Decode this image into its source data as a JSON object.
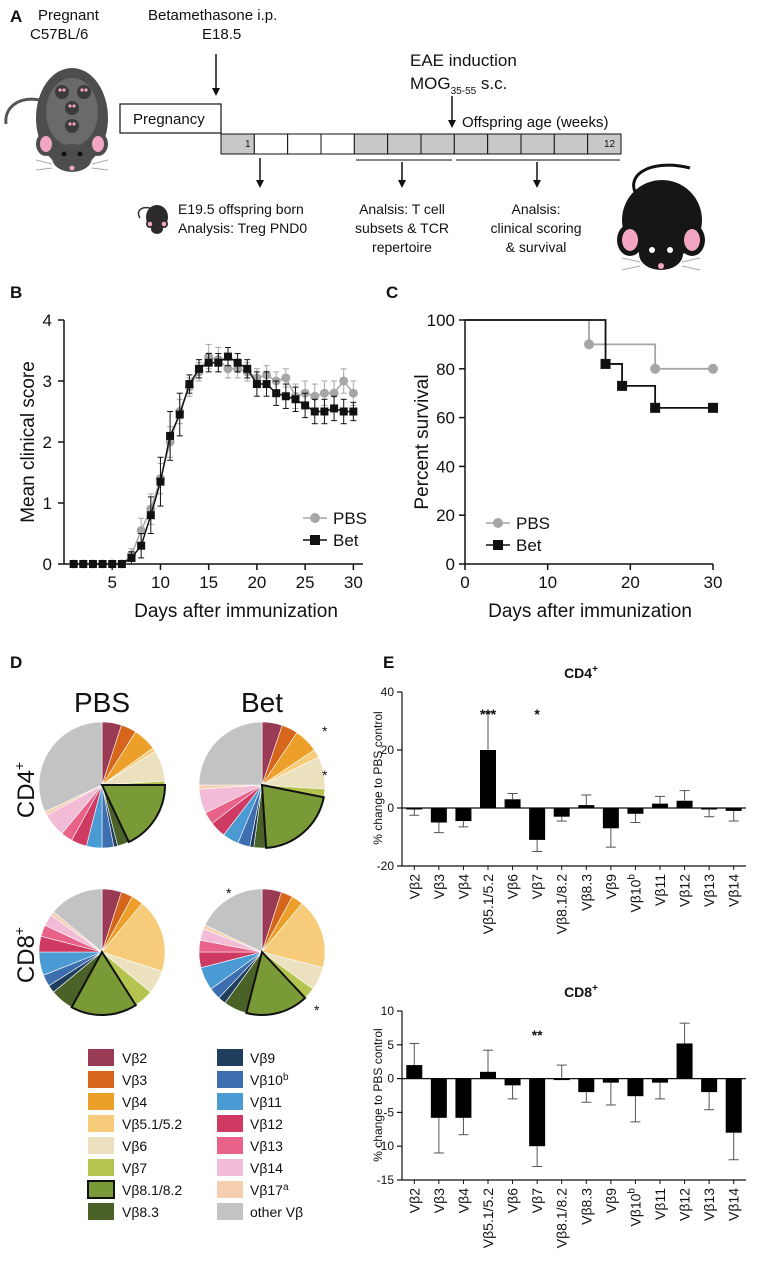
{
  "panel_labels": [
    "A",
    "B",
    "C",
    "D",
    "E"
  ],
  "panel_a": {
    "pregnant_label": [
      "Pregnant",
      "C57BL/6"
    ],
    "betamethasone": [
      "Betamethasone i.p.",
      "E18.5"
    ],
    "eae_induction": "EAE induction",
    "mog_main": "MOG",
    "mog_sub": "35-55",
    "mog_suffix": " s.c.",
    "pregnancy_box": "Pregnancy",
    "offspring_age": "Offspring age (weeks)",
    "week_first": "1",
    "week_last": "12",
    "offspring_born": [
      "E19.5 offspring born",
      "Analysis: Treg PND0"
    ],
    "analysis_tcell": [
      "Analsis: T cell",
      "subsets & TCR",
      "repertoire"
    ],
    "analysis_clinical": [
      "Analsis:",
      "clinical scoring",
      "& survival"
    ]
  },
  "chart_data": [
    {
      "panel": "B",
      "type": "line",
      "xlabel": "Days after immunization",
      "ylabel": "Mean clinical score",
      "xlim": [
        0,
        31
      ],
      "ylim": [
        0,
        4
      ],
      "xticks": [
        5,
        10,
        15,
        20,
        25,
        30
      ],
      "yticks": [
        0,
        1,
        2,
        3,
        4
      ],
      "legend": [
        "PBS",
        "Bet"
      ],
      "legend_position": "bottom-right",
      "series": [
        {
          "name": "PBS",
          "color": "#a6a6a6",
          "marker": "circle",
          "x": [
            1,
            2,
            3,
            4,
            5,
            6,
            7,
            8,
            9,
            10,
            11,
            12,
            13,
            14,
            15,
            16,
            17,
            18,
            19,
            20,
            21,
            22,
            23,
            24,
            25,
            26,
            27,
            28,
            29,
            30
          ],
          "values": [
            0,
            0,
            0,
            0,
            0,
            0,
            0.15,
            0.55,
            0.9,
            1.4,
            2.0,
            2.5,
            2.9,
            3.15,
            3.4,
            3.35,
            3.2,
            3.2,
            3.15,
            3.05,
            3.1,
            3.0,
            3.05,
            2.75,
            2.8,
            2.75,
            2.8,
            2.8,
            3.0,
            2.8
          ],
          "errors": [
            0,
            0,
            0,
            0,
            0,
            0,
            0.1,
            0.2,
            0.25,
            0.25,
            0.25,
            0.2,
            0.15,
            0.15,
            0.2,
            0.2,
            0.15,
            0.15,
            0.15,
            0.15,
            0.15,
            0.15,
            0.15,
            0.2,
            0.2,
            0.2,
            0.2,
            0.2,
            0.2,
            0.2
          ]
        },
        {
          "name": "Bet",
          "color": "#111111",
          "marker": "square",
          "x": [
            1,
            2,
            3,
            4,
            5,
            6,
            7,
            8,
            9,
            10,
            11,
            12,
            13,
            14,
            15,
            16,
            17,
            18,
            19,
            20,
            21,
            22,
            23,
            24,
            25,
            26,
            27,
            28,
            29,
            30
          ],
          "values": [
            0,
            0,
            0,
            0,
            0,
            0,
            0.1,
            0.3,
            0.8,
            1.35,
            2.1,
            2.45,
            2.95,
            3.2,
            3.3,
            3.3,
            3.4,
            3.3,
            3.2,
            2.95,
            2.95,
            2.8,
            2.75,
            2.7,
            2.6,
            2.5,
            2.5,
            2.55,
            2.5,
            2.5
          ],
          "errors": [
            0,
            0,
            0,
            0,
            0,
            0,
            0.1,
            0.2,
            0.3,
            0.4,
            0.4,
            0.35,
            0.15,
            0.15,
            0.15,
            0.15,
            0.15,
            0.15,
            0.15,
            0.2,
            0.2,
            0.2,
            0.2,
            0.2,
            0.2,
            0.2,
            0.2,
            0.2,
            0.2,
            0.15
          ]
        }
      ]
    },
    {
      "panel": "C",
      "type": "line",
      "subtype": "survival-step",
      "xlabel": "Days after immunization",
      "ylabel": "Percent survival",
      "xlim": [
        0,
        30
      ],
      "ylim": [
        0,
        100
      ],
      "xticks": [
        0,
        10,
        20,
        30
      ],
      "yticks": [
        0,
        20,
        40,
        60,
        80,
        100
      ],
      "legend": [
        "PBS",
        "Bet"
      ],
      "legend_position": "bottom-left",
      "series": [
        {
          "name": "PBS",
          "color": "#a6a6a6",
          "marker": "circle",
          "steps": [
            [
              0,
              100
            ],
            [
              15,
              100
            ],
            [
              15,
              90
            ],
            [
              23,
              90
            ],
            [
              23,
              80
            ],
            [
              30,
              80
            ]
          ],
          "markers": [
            [
              15,
              90
            ],
            [
              23,
              80
            ],
            [
              30,
              80
            ]
          ]
        },
        {
          "name": "Bet",
          "color": "#111111",
          "marker": "square",
          "steps": [
            [
              0,
              100
            ],
            [
              17,
              100
            ],
            [
              17,
              82
            ],
            [
              19,
              82
            ],
            [
              19,
              73
            ],
            [
              23,
              73
            ],
            [
              23,
              64
            ],
            [
              30,
              64
            ]
          ],
          "markers": [
            [
              17,
              82
            ],
            [
              19,
              73
            ],
            [
              23,
              64
            ],
            [
              30,
              64
            ]
          ]
        }
      ]
    },
    {
      "panel": "D",
      "type": "pie",
      "columns": [
        "PBS",
        "Bet"
      ],
      "rows": [
        "CD4",
        "CD8"
      ],
      "row_superscript": "+",
      "categories": [
        "Vβ2",
        "Vβ3",
        "Vβ4",
        "Vβ5.1/5.2",
        "Vβ6",
        "Vβ7",
        "Vβ8.1/8.2",
        "Vβ8.3",
        "Vβ9",
        "Vβ10b",
        "Vβ11",
        "Vβ12",
        "Vβ13",
        "Vβ14",
        "Vβ17a",
        "other Vβ"
      ],
      "colors": [
        "#9a3b55",
        "#d5661b",
        "#eca02a",
        "#f6cc7b",
        "#ece1bf",
        "#b5c44e",
        "#7a9a38",
        "#4a6128",
        "#1f3d5c",
        "#3d6eaf",
        "#4a9ad3",
        "#cf3a62",
        "#e9628a",
        "#f2bcd7",
        "#f6cfb0",
        "#c3c3c3"
      ],
      "pies": [
        {
          "label": "PBS CD4+",
          "values": [
            5,
            4,
            6,
            1,
            8,
            1,
            18,
            3,
            1,
            3,
            4,
            4,
            3,
            6,
            1,
            32
          ],
          "stars": []
        },
        {
          "label": "Bet CD4+",
          "values": [
            5,
            4,
            6,
            2,
            8,
            2,
            20,
            3,
            1,
            3,
            4,
            4,
            3,
            6,
            1,
            24
          ],
          "stars": [
            "*",
            "*"
          ]
        },
        {
          "label": "PBS CD8+",
          "values": [
            5,
            3,
            3,
            19,
            6,
            5,
            17,
            6,
            2,
            3,
            6,
            4,
            3,
            3,
            1,
            14
          ],
          "stars": []
        },
        {
          "label": "Bet CD8+",
          "values": [
            5,
            3,
            3,
            18,
            6,
            3,
            16,
            6,
            2,
            3,
            6,
            4,
            3,
            3,
            1,
            18
          ],
          "stars": [
            "*",
            "*"
          ]
        }
      ],
      "legend_left": [
        "Vβ2",
        "Vβ3",
        "Vβ4",
        "Vβ5.1/5.2",
        "Vβ6",
        "Vβ7",
        "Vβ8.1/8.2",
        "Vβ8.3"
      ],
      "legend_right_names": [
        "Vβ9",
        "Vβ10",
        "Vβ11",
        "Vβ12",
        "Vβ13",
        "Vβ14",
        "Vβ17",
        "other Vβ"
      ],
      "legend_right_sup": [
        "",
        "b",
        "",
        "",
        "",
        "",
        "a",
        ""
      ]
    },
    {
      "panel": "E-top",
      "type": "bar",
      "title": "CD4",
      "title_sup": "+",
      "ylabel": "% change to PBS control",
      "ylim": [
        -20,
        40
      ],
      "yticks": [
        -20,
        0,
        20,
        40
      ],
      "categories": [
        "Vβ2",
        "Vβ3",
        "Vβ4",
        "Vβ5.1/5.2",
        "Vβ6",
        "Vβ7",
        "Vβ8.1/8.2",
        "Vβ8.3",
        "Vβ9",
        "Vβ10",
        "Vβ11",
        "Vβ12",
        "Vβ13",
        "Vβ14"
      ],
      "category_sup": [
        "",
        "",
        "",
        "",
        "",
        "",
        "",
        "",
        "",
        "b",
        "",
        "",
        "",
        ""
      ],
      "values": [
        -0.5,
        -5,
        -4.5,
        20,
        3,
        -11,
        -3,
        1,
        -7,
        -2,
        1.5,
        2.5,
        -0.5,
        -1
      ],
      "errors": [
        2,
        3.5,
        2,
        13,
        2,
        4,
        1.5,
        3.5,
        6.5,
        3,
        2.5,
        3.5,
        2.5,
        3.5
      ],
      "significance": [
        {
          "index": 3,
          "label": "***"
        },
        {
          "index": 5,
          "label": "*"
        }
      ]
    },
    {
      "panel": "E-bottom",
      "type": "bar",
      "title": "CD8",
      "title_sup": "+",
      "ylabel": "% change to PBS control",
      "ylim": [
        -15,
        10
      ],
      "yticks": [
        -15,
        -10,
        -5,
        0,
        5,
        10
      ],
      "categories": [
        "Vβ2",
        "Vβ3",
        "Vβ4",
        "Vβ5.1/5.2",
        "Vβ6",
        "Vβ7",
        "Vβ8.1/8.2",
        "Vβ8.3",
        "Vβ9",
        "Vβ10",
        "Vβ11",
        "Vβ12",
        "Vβ13",
        "Vβ14"
      ],
      "category_sup": [
        "",
        "",
        "",
        "",
        "",
        "",
        "",
        "",
        "",
        "b",
        "",
        "",
        "",
        ""
      ],
      "values": [
        2,
        -5.8,
        -5.8,
        1,
        -1,
        -10,
        0,
        -2,
        -0.6,
        -2.6,
        -0.6,
        5.2,
        -2,
        -8
      ],
      "errors": [
        3.2,
        5.2,
        2.5,
        3.2,
        2,
        3,
        2,
        1.5,
        3.3,
        3.8,
        2.4,
        3,
        2.6,
        4
      ],
      "significance": [
        {
          "index": 5,
          "label": "**"
        }
      ]
    }
  ]
}
